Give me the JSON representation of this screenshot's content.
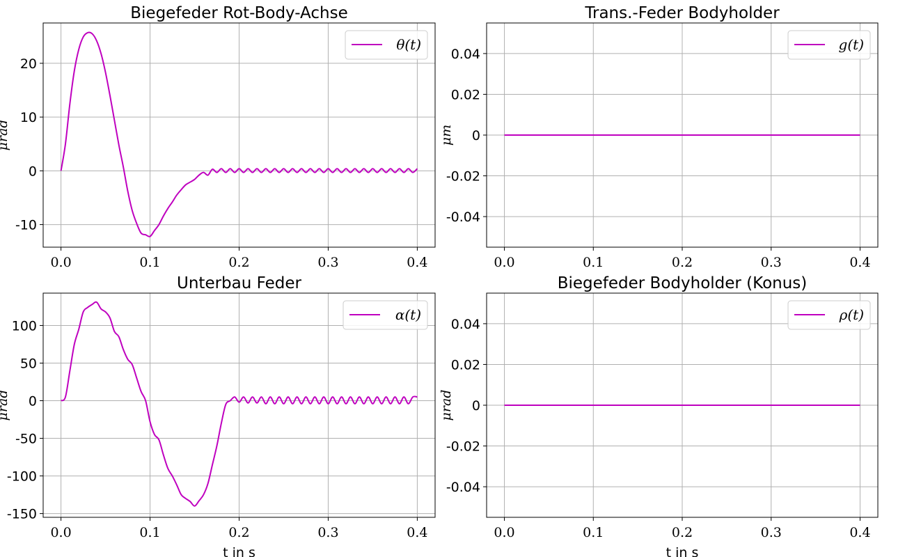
{
  "chart_data": [
    {
      "type": "line",
      "title": "Biegefeder Rot-Body-Achse",
      "xlabel": "",
      "ylabel": "μrad",
      "xlim": [
        -0.02,
        0.42
      ],
      "ylim": [
        -14.2,
        27.5
      ],
      "xticks": [
        0.0,
        0.1,
        0.2,
        0.3,
        0.4
      ],
      "xtick_labels": [
        "0.0",
        "0.1",
        "0.2",
        "0.3",
        "0.4"
      ],
      "yticks": [
        -10,
        0,
        10,
        20
      ],
      "ytick_labels": [
        "-10",
        "0",
        "10",
        "20"
      ],
      "grid": true,
      "legend": "top-right",
      "color": "#bf00bf",
      "series": [
        {
          "name": "θ(t)",
          "x": [
            0.0,
            0.005,
            0.01,
            0.015,
            0.02,
            0.025,
            0.03,
            0.035,
            0.04,
            0.045,
            0.05,
            0.055,
            0.06,
            0.065,
            0.07,
            0.075,
            0.08,
            0.085,
            0.09,
            0.095,
            0.1,
            0.105,
            0.11,
            0.115,
            0.12,
            0.125,
            0.13,
            0.135,
            0.14,
            0.145,
            0.15,
            0.155,
            0.16,
            0.165,
            0.17,
            0.175,
            0.18,
            0.185,
            0.19,
            0.195,
            0.2,
            0.205,
            0.21,
            0.215,
            0.22,
            0.225,
            0.23,
            0.235,
            0.24,
            0.245,
            0.25,
            0.255,
            0.26,
            0.265,
            0.27,
            0.275,
            0.28,
            0.285,
            0.29,
            0.295,
            0.3,
            0.305,
            0.31,
            0.315,
            0.32,
            0.325,
            0.33,
            0.335,
            0.34,
            0.345,
            0.35,
            0.355,
            0.36,
            0.365,
            0.37,
            0.375,
            0.38,
            0.385,
            0.39,
            0.395,
            0.4
          ],
          "y": [
            0.0,
            5.0,
            12.5,
            18.6,
            22.6,
            24.9,
            25.7,
            25.5,
            24.2,
            21.8,
            18.3,
            14.0,
            9.4,
            4.8,
            0.7,
            -3.8,
            -7.4,
            -9.8,
            -11.6,
            -11.9,
            -12.2,
            -11.1,
            -10.0,
            -8.4,
            -7.0,
            -5.8,
            -4.5,
            -3.5,
            -2.6,
            -2.1,
            -1.6,
            -0.8,
            -0.3,
            -0.8,
            0.3,
            -0.3,
            0.4,
            -0.3,
            0.4,
            -0.3,
            0.4,
            -0.3,
            0.4,
            -0.3,
            0.4,
            -0.3,
            0.4,
            -0.3,
            0.4,
            -0.3,
            0.4,
            -0.3,
            0.4,
            -0.3,
            0.4,
            -0.3,
            0.4,
            -0.3,
            0.4,
            -0.3,
            0.4,
            -0.3,
            0.4,
            -0.3,
            0.4,
            -0.3,
            0.4,
            -0.3,
            0.4,
            -0.3,
            0.4,
            -0.3,
            0.4,
            -0.3,
            0.4,
            -0.3,
            0.4,
            -0.3,
            0.4,
            -0.3,
            0.4
          ]
        }
      ]
    },
    {
      "type": "line",
      "title": "Trans.-Feder Bodyholder",
      "xlabel": "",
      "ylabel": "μm",
      "xlim": [
        -0.02,
        0.42
      ],
      "ylim": [
        -0.055,
        0.055
      ],
      "xticks": [
        0.0,
        0.1,
        0.2,
        0.3,
        0.4
      ],
      "xtick_labels": [
        "0.0",
        "0.1",
        "0.2",
        "0.3",
        "0.4"
      ],
      "yticks": [
        -0.04,
        -0.02,
        0,
        0.02,
        0.04
      ],
      "ytick_labels": [
        "-0.04",
        "-0.02",
        "0",
        "0.02",
        "0.04"
      ],
      "grid": true,
      "legend": "top-right",
      "color": "#bf00bf",
      "series": [
        {
          "name": "g(t)",
          "x": [
            0.0,
            0.4
          ],
          "y": [
            0,
            0
          ]
        }
      ]
    },
    {
      "type": "line",
      "title": "Unterbau Feder",
      "xlabel": "t in s",
      "ylabel": "μrad",
      "xlim": [
        -0.02,
        0.42
      ],
      "ylim": [
        -155,
        143
      ],
      "xticks": [
        0.0,
        0.1,
        0.2,
        0.3,
        0.4
      ],
      "xtick_labels": [
        "0.0",
        "0.1",
        "0.2",
        "0.3",
        "0.4"
      ],
      "yticks": [
        -150,
        -100,
        -50,
        0,
        50,
        100
      ],
      "ytick_labels": [
        "-150",
        "-100",
        "-50",
        "0",
        "50",
        "100"
      ],
      "grid": true,
      "legend": "top-right",
      "color": "#bf00bf",
      "series": [
        {
          "name": "α(t)",
          "x": [
            0.0,
            0.005,
            0.01,
            0.015,
            0.02,
            0.025,
            0.03,
            0.035,
            0.04,
            0.045,
            0.05,
            0.055,
            0.06,
            0.065,
            0.07,
            0.075,
            0.08,
            0.085,
            0.09,
            0.095,
            0.1,
            0.105,
            0.11,
            0.115,
            0.12,
            0.125,
            0.13,
            0.135,
            0.14,
            0.145,
            0.15,
            0.155,
            0.16,
            0.165,
            0.17,
            0.175,
            0.18,
            0.185,
            0.19,
            0.195,
            0.2,
            0.205,
            0.21,
            0.215,
            0.22,
            0.225,
            0.23,
            0.235,
            0.24,
            0.245,
            0.25,
            0.255,
            0.26,
            0.265,
            0.27,
            0.275,
            0.28,
            0.285,
            0.29,
            0.295,
            0.3,
            0.305,
            0.31,
            0.315,
            0.32,
            0.325,
            0.33,
            0.335,
            0.34,
            0.345,
            0.35,
            0.355,
            0.36,
            0.365,
            0.37,
            0.375,
            0.38,
            0.385,
            0.39,
            0.395,
            0.4
          ],
          "y": [
            0,
            5,
            40,
            75,
            95,
            118,
            124,
            128,
            131,
            122,
            118,
            110,
            92,
            85,
            68,
            55,
            48,
            30,
            12,
            0,
            -28,
            -45,
            -52,
            -72,
            -90,
            -100,
            -112,
            -125,
            -130,
            -134,
            -140,
            -133,
            -125,
            -110,
            -85,
            -60,
            -30,
            -5,
            0,
            5,
            -2,
            5,
            -3,
            5,
            -3,
            5,
            -4,
            5,
            -4,
            5,
            -4,
            5,
            -4,
            5,
            -4,
            5,
            -4,
            5,
            -4,
            5,
            -4,
            5,
            -4,
            5,
            -4,
            5,
            -4,
            5,
            -4,
            5,
            -4,
            5,
            -4,
            5,
            -4,
            5,
            -4,
            5,
            -4,
            5,
            5
          ]
        }
      ]
    },
    {
      "type": "line",
      "title": "Biegefeder Bodyholder (Konus)",
      "xlabel": "t in s",
      "ylabel": "μrad",
      "xlim": [
        -0.02,
        0.42
      ],
      "ylim": [
        -0.055,
        0.055
      ],
      "xticks": [
        0.0,
        0.1,
        0.2,
        0.3,
        0.4
      ],
      "xtick_labels": [
        "0.0",
        "0.1",
        "0.2",
        "0.3",
        "0.4"
      ],
      "yticks": [
        -0.04,
        -0.02,
        0,
        0.02,
        0.04
      ],
      "ytick_labels": [
        "-0.04",
        "-0.02",
        "0",
        "0.02",
        "0.04"
      ],
      "grid": true,
      "legend": "top-right",
      "color": "#bf00bf",
      "series": [
        {
          "name": "ρ(t)",
          "x": [
            0.0,
            0.4
          ],
          "y": [
            0,
            0
          ]
        }
      ]
    }
  ]
}
